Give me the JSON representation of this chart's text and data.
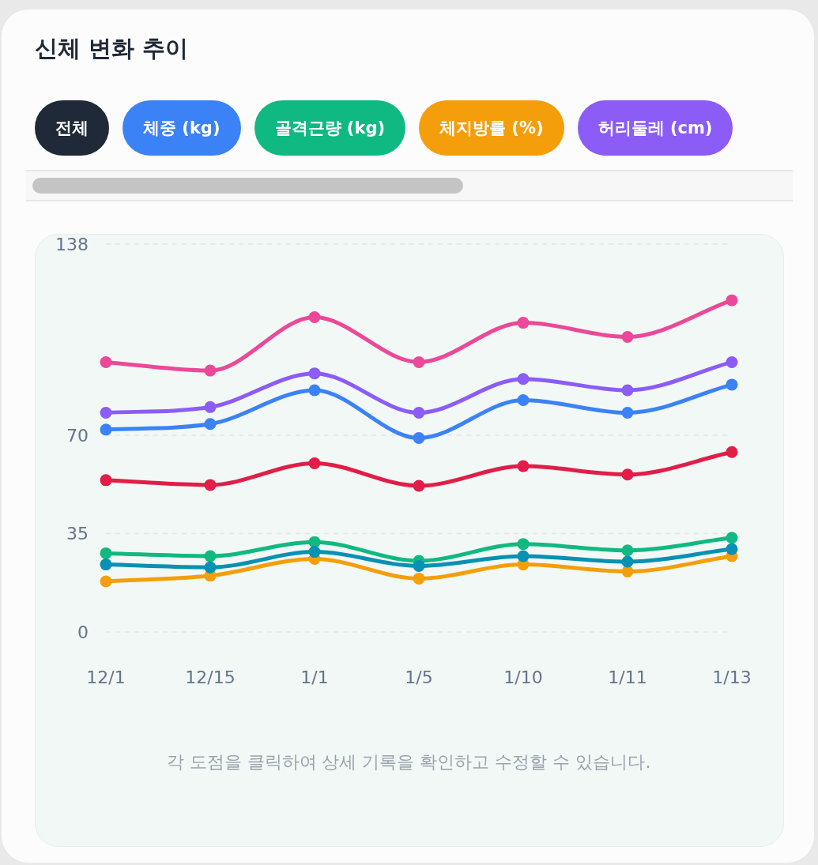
{
  "chart_data": {
    "type": "line",
    "title": "신체 변화 추이",
    "legend_title": "전체",
    "legend": "top",
    "categories": [
      "12/1",
      "12/15",
      "1/1",
      "1/5",
      "1/10",
      "1/11",
      "1/13"
    ],
    "series": [
      {
        "name": "체중 (kg)",
        "color": "#3b82f6",
        "values": [
          72,
          74,
          86,
          69,
          82.5,
          78,
          88
        ]
      },
      {
        "name": "골격근량 (kg)",
        "color": "#10b981",
        "values": [
          28,
          27,
          32,
          25.3,
          31.3,
          29,
          33.5
        ]
      },
      {
        "name": "체지방률 (%)",
        "color": "#f59e0b",
        "values": [
          18,
          20,
          26,
          19,
          24,
          21.5,
          27
        ]
      },
      {
        "name": "허리둘레 (cm)",
        "color": "#8b5cf6",
        "values": [
          78,
          80,
          92,
          78,
          90,
          86,
          96
        ]
      },
      {
        "color": "#ec4899",
        "values": [
          96,
          93,
          112,
          96,
          110,
          105,
          118
        ]
      },
      {
        "color": "#e11d48",
        "values": [
          54,
          52.3,
          60,
          52,
          59,
          56,
          64
        ]
      },
      {
        "color": "#0891b2",
        "values": [
          24,
          23,
          28.5,
          23.5,
          27,
          25,
          29.5
        ]
      }
    ],
    "ylim": [
      0,
      138
    ],
    "yticks": [
      0,
      35,
      70,
      138
    ],
    "grid": "y",
    "marker": "circle",
    "line_style": "solid",
    "annotations": [
      "각 도점을 클릭하여 상세 기록을 확인하고 수정할 수 있습니다."
    ]
  }
}
